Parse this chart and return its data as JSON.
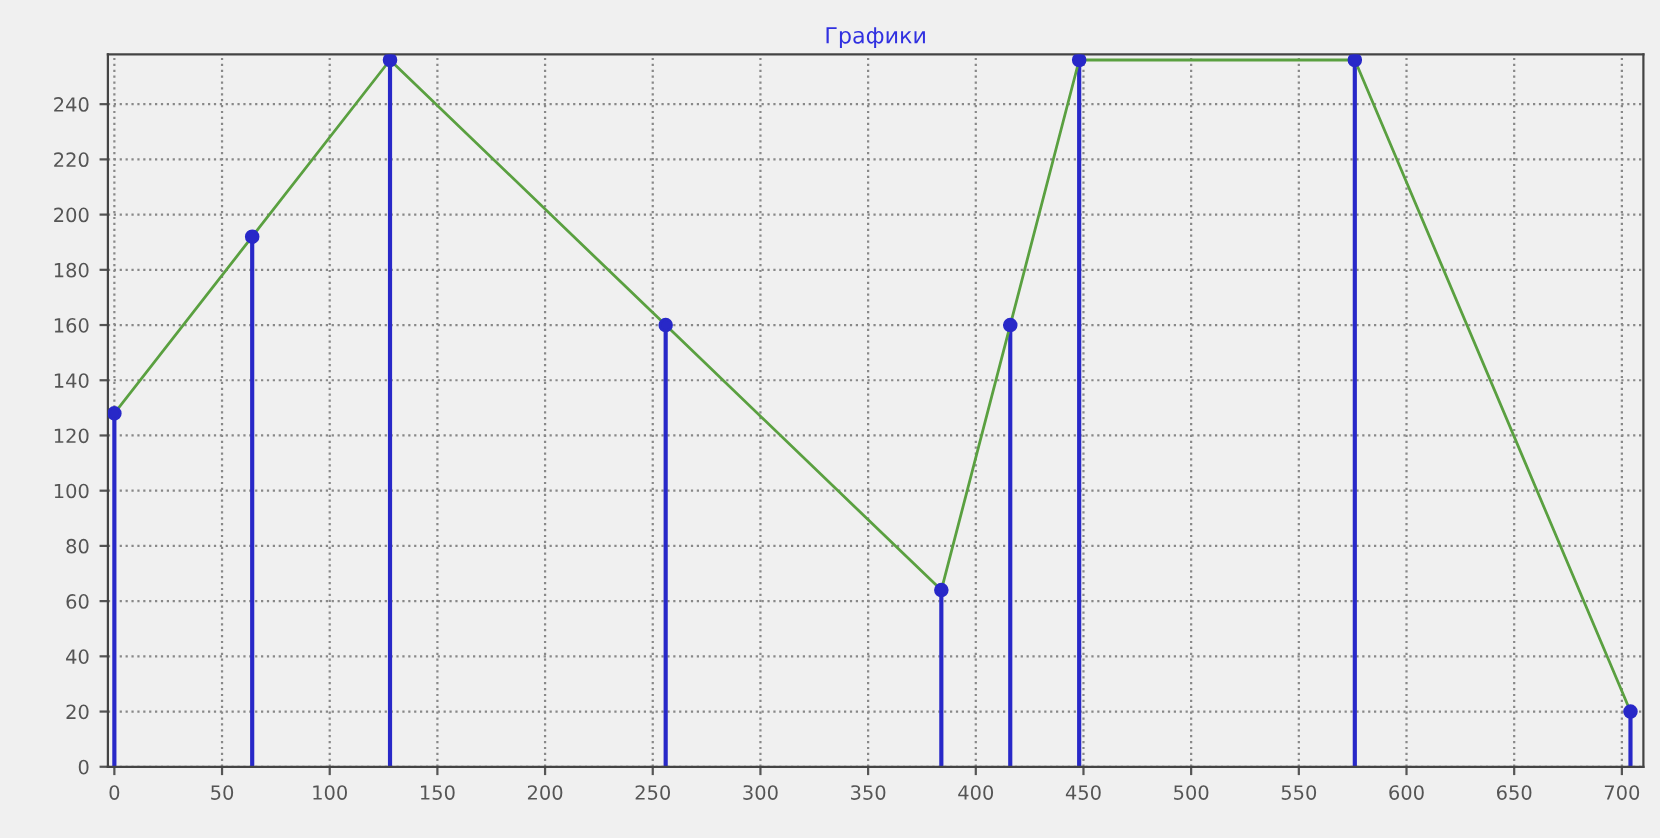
{
  "chart_data": {
    "type": "lollipop",
    "title": "Графики",
    "x": [
      0,
      64,
      128,
      256,
      384,
      416,
      448,
      576,
      704
    ],
    "series": [
      {
        "color": "#2828c8",
        "marker": "circle",
        "values": [
          128,
          192,
          256,
          160,
          64,
          160,
          256,
          256,
          20
        ]
      },
      {
        "type": "line",
        "color": "#5aa040",
        "values": [
          128,
          192,
          256,
          160,
          64,
          160,
          256,
          256,
          20
        ]
      }
    ],
    "xlim": [
      -3,
      710
    ],
    "ylim": [
      0,
      258
    ],
    "xticks": [
      0,
      50,
      100,
      150,
      200,
      250,
      300,
      350,
      400,
      450,
      500,
      550,
      600,
      650,
      700
    ],
    "yticks": [
      0,
      20,
      40,
      60,
      80,
      100,
      120,
      140,
      160,
      180,
      200,
      220,
      240
    ],
    "grid": true,
    "line_style": "solid"
  }
}
